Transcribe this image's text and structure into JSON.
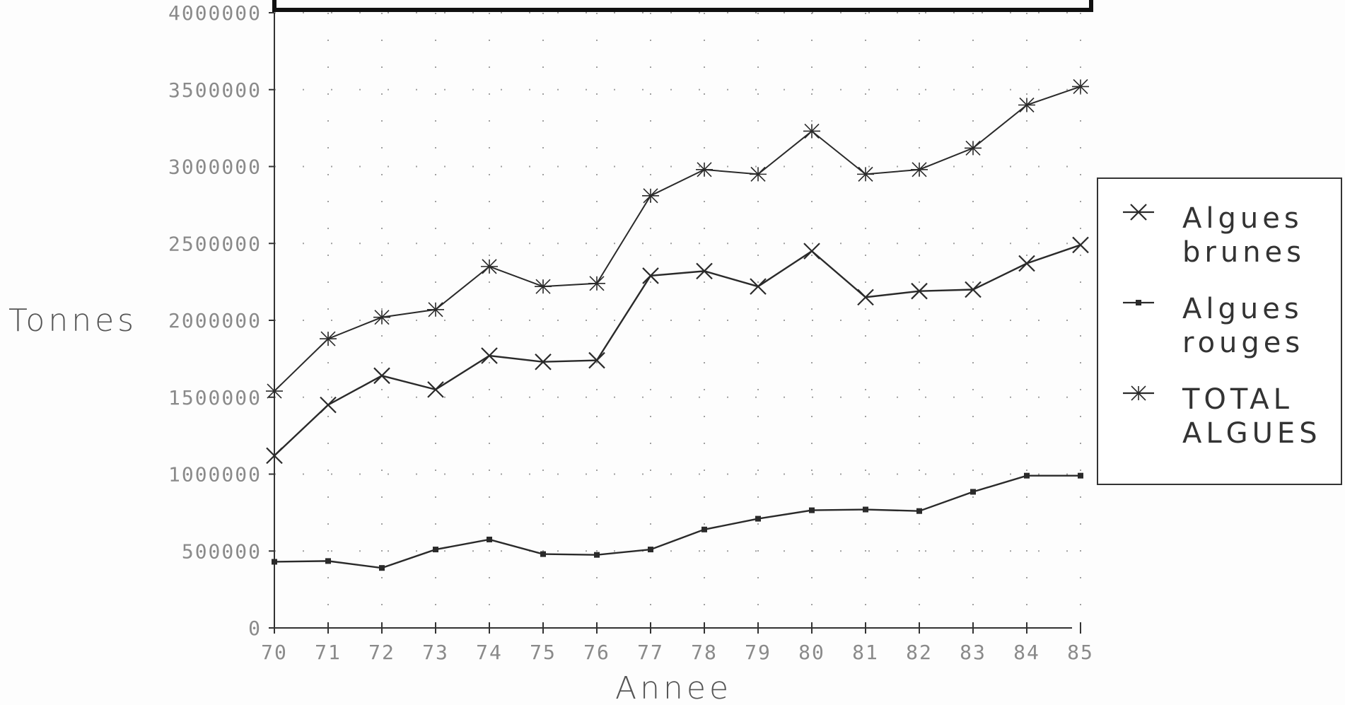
{
  "chart_data": {
    "type": "line",
    "title": "",
    "xlabel": "Annee",
    "ylabel": "Tonnes",
    "x": [
      "70",
      "71",
      "72",
      "73",
      "74",
      "75",
      "76",
      "77",
      "78",
      "79",
      "80",
      "81",
      "82",
      "83",
      "84",
      "85"
    ],
    "ylim": [
      0,
      4000000
    ],
    "yticks": [
      "0",
      "500000",
      "1000000",
      "1500000",
      "2000000",
      "2500000",
      "3000000",
      "3500000",
      "4000000"
    ],
    "grid": "dotted",
    "legend_position": "right",
    "series": [
      {
        "name_line1": "Algues",
        "name_line2": "brunes",
        "marker": "x",
        "values": [
          1120000,
          1450000,
          1640000,
          1550000,
          1770000,
          1730000,
          1740000,
          2290000,
          2320000,
          2220000,
          2450000,
          2150000,
          2190000,
          2200000,
          2370000,
          2490000
        ]
      },
      {
        "name_line1": "Algues",
        "name_line2": "rouges",
        "marker": "square",
        "values": [
          430000,
          435000,
          390000,
          510000,
          575000,
          480000,
          475000,
          510000,
          640000,
          710000,
          765000,
          770000,
          760000,
          885000,
          990000,
          990000
        ]
      },
      {
        "name_line1": "TOTAL",
        "name_line2": "ALGUES",
        "marker": "star",
        "values": [
          1540000,
          1880000,
          2020000,
          2070000,
          2350000,
          2220000,
          2240000,
          2810000,
          2980000,
          2950000,
          3230000,
          2950000,
          2980000,
          3120000,
          3400000,
          3520000
        ]
      }
    ],
    "colors": {
      "line": "#2a2a2a",
      "axis": "#333333",
      "grid": "#a0a0a0",
      "tick_text": "#8a8a8a",
      "legend_border": "#333333"
    }
  }
}
